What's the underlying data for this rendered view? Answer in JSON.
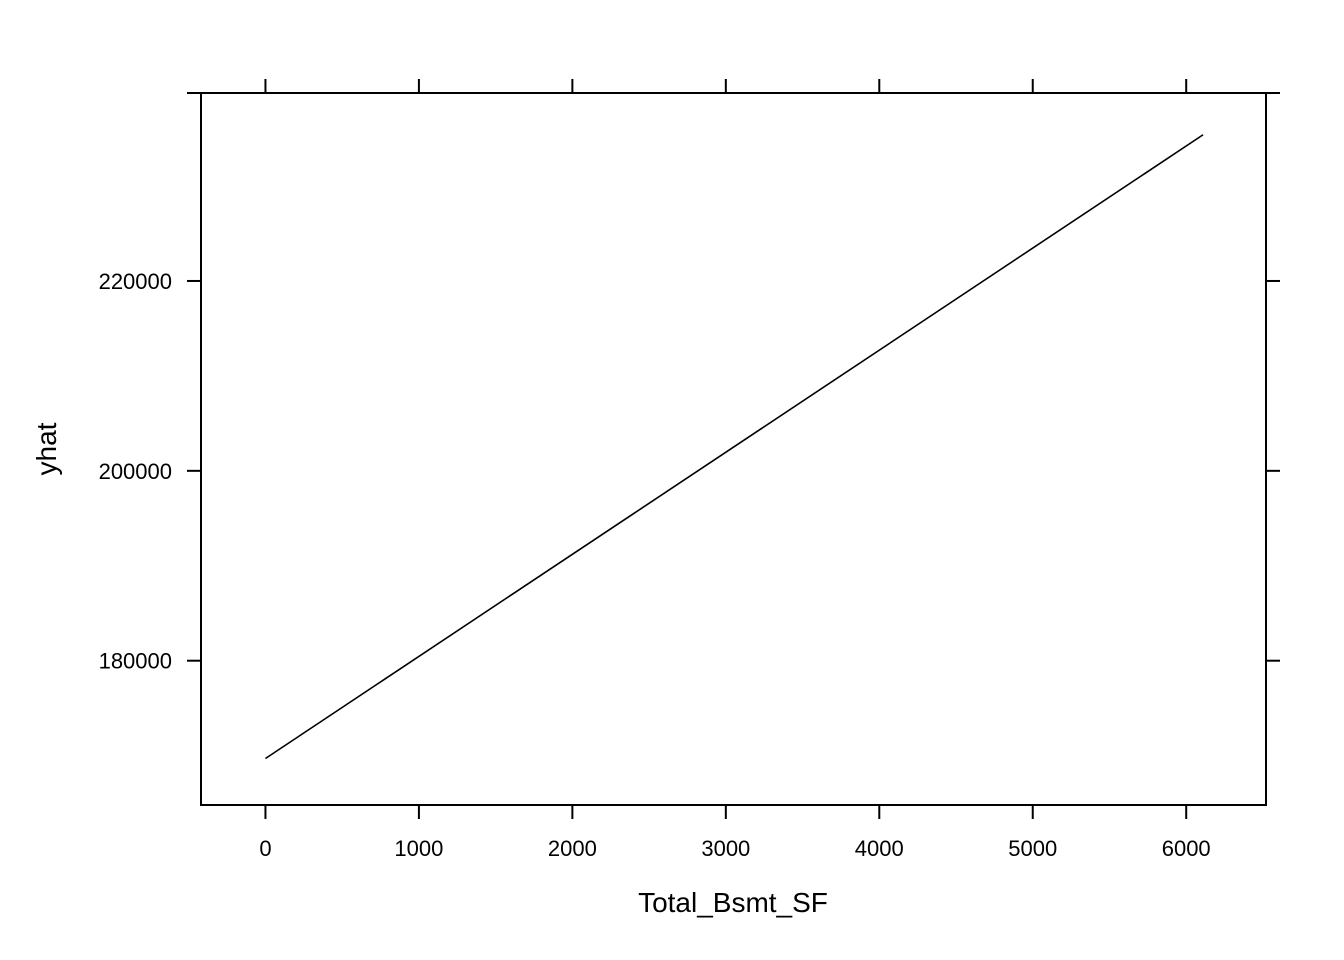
{
  "chart_data": {
    "type": "line",
    "title": "",
    "xlabel": "Total_Bsmt_SF",
    "ylabel": "yhat",
    "xlim": [
      -420,
      6520
    ],
    "ylim": [
      164800,
      239800
    ],
    "x_ticks": [
      0,
      1000,
      2000,
      3000,
      4000,
      5000,
      6000
    ],
    "x_tick_labels": [
      "0",
      "1000",
      "2000",
      "3000",
      "4000",
      "5000",
      "6000"
    ],
    "y_ticks": [
      180000,
      200000,
      220000
    ],
    "y_tick_labels": [
      "180000",
      "200000",
      "220000"
    ],
    "grid": false,
    "legend": "none",
    "series": [
      {
        "x": [
          0,
          6110
        ],
        "values": [
          169700,
          235400
        ]
      }
    ]
  }
}
